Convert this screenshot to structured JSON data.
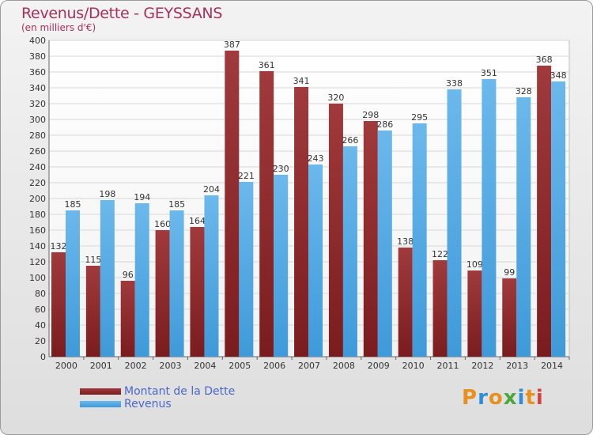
{
  "title": "Revenus/Dette - GEYSSANS",
  "subtitle": "(en milliers d'€)",
  "logo_text": "Proxiti",
  "colors": {
    "debt": "#7a1c1e",
    "debt_light": "#a03a3c",
    "revenue": "#3f9ad9",
    "revenue_light": "#6bb8ec",
    "title": "#a8305a",
    "legend_text": "#4a67c9"
  },
  "chart_data": {
    "type": "bar",
    "title": "Revenus/Dette - GEYSSANS",
    "subtitle": "(en milliers d'€)",
    "categories": [
      "2000",
      "2001",
      "2002",
      "2003",
      "2004",
      "2005",
      "2006",
      "2007",
      "2008",
      "2009",
      "2010",
      "2011",
      "2012",
      "2013",
      "2014"
    ],
    "series": [
      {
        "name": "Montant de la Dette",
        "values": [
          132,
          115,
          96,
          160,
          164,
          387,
          361,
          341,
          320,
          298,
          138,
          122,
          109,
          99,
          368
        ]
      },
      {
        "name": "Revenus",
        "values": [
          185,
          198,
          194,
          185,
          204,
          221,
          230,
          243,
          266,
          286,
          295,
          338,
          351,
          328,
          348
        ]
      }
    ],
    "ylim": [
      0,
      400
    ],
    "ytick_step": 20,
    "grid": true,
    "legend": "bottom-left"
  }
}
